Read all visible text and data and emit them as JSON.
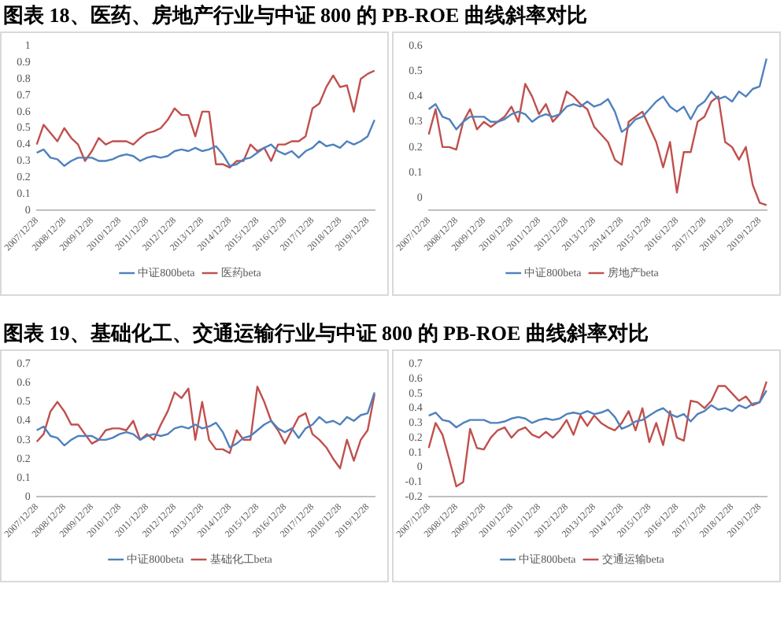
{
  "chart_data": [
    {
      "type": "line",
      "title": "图表 18、医药、房地产行业与中证 800 的 PB-ROE 曲线斜率对比",
      "categories": [
        "2007/12/28",
        null,
        null,
        null,
        "2008/12/28",
        null,
        null,
        null,
        "2009/12/28",
        null,
        null,
        null,
        "2010/12/28",
        null,
        null,
        null,
        "2011/12/28",
        null,
        null,
        null,
        "2012/12/28",
        null,
        null,
        null,
        "2013/12/28",
        null,
        null,
        null,
        "2014/12/28",
        null,
        null,
        null,
        "2015/12/28",
        null,
        null,
        null,
        "2016/12/28",
        null,
        null,
        null,
        "2017/12/28",
        null,
        null,
        null,
        "2018/12/28",
        null,
        null,
        null,
        "2019/12/28",
        null
      ],
      "ylim": [
        0,
        1
      ],
      "yticks": [
        0,
        0.1,
        0.2,
        0.3,
        0.4,
        0.5,
        0.6,
        0.7,
        0.8,
        0.9,
        1
      ],
      "legend": "bottom",
      "marker": "none",
      "series": [
        {
          "name": "中证800beta",
          "color": "#4f81bd",
          "values": [
            0.35,
            0.37,
            0.32,
            0.31,
            0.27,
            0.3,
            0.32,
            0.32,
            0.32,
            0.3,
            0.3,
            0.31,
            0.33,
            0.34,
            0.33,
            0.3,
            0.32,
            0.33,
            0.32,
            0.33,
            0.36,
            0.37,
            0.36,
            0.38,
            0.36,
            0.37,
            0.39,
            0.34,
            0.27,
            0.28,
            0.31,
            0.32,
            0.35,
            0.38,
            0.4,
            0.36,
            0.34,
            0.36,
            0.32,
            0.36,
            0.38,
            0.42,
            0.39,
            0.4,
            0.38,
            0.42,
            0.4,
            0.42,
            0.45,
            0.55
          ]
        },
        {
          "name": "医药beta",
          "color": "#c0504d",
          "values": [
            0.4,
            0.52,
            0.47,
            0.42,
            0.5,
            0.44,
            0.4,
            0.3,
            0.36,
            0.44,
            0.4,
            0.42,
            0.42,
            0.42,
            0.4,
            0.44,
            0.47,
            0.48,
            0.5,
            0.55,
            0.62,
            0.58,
            0.58,
            0.45,
            0.6,
            0.6,
            0.28,
            0.28,
            0.26,
            0.3,
            0.3,
            0.4,
            0.36,
            0.38,
            0.3,
            0.4,
            0.4,
            0.42,
            0.42,
            0.45,
            0.62,
            0.65,
            0.75,
            0.82,
            0.75,
            0.76,
            0.6,
            0.8,
            0.83,
            0.85
          ]
        }
      ]
    },
    {
      "type": "line",
      "categories": [
        "2007/12/28",
        null,
        null,
        null,
        "2008/12/28",
        null,
        null,
        null,
        "2009/12/28",
        null,
        null,
        null,
        "2010/12/28",
        null,
        null,
        null,
        "2011/12/28",
        null,
        null,
        null,
        "2012/12/28",
        null,
        null,
        null,
        "2013/12/28",
        null,
        null,
        null,
        "2014/12/28",
        null,
        null,
        null,
        "2015/12/28",
        null,
        null,
        null,
        "2016/12/28",
        null,
        null,
        null,
        "2017/12/28",
        null,
        null,
        null,
        "2018/12/28",
        null,
        null,
        null,
        "2019/12/28",
        null
      ],
      "ylim": [
        -0.05,
        0.6
      ],
      "yticks": [
        0,
        0.1,
        0.2,
        0.3,
        0.4,
        0.5,
        0.6
      ],
      "legend": "bottom",
      "marker": "none",
      "series": [
        {
          "name": "中证800beta",
          "color": "#4f81bd",
          "values": [
            0.35,
            0.37,
            0.32,
            0.31,
            0.27,
            0.3,
            0.32,
            0.32,
            0.32,
            0.3,
            0.3,
            0.31,
            0.33,
            0.34,
            0.33,
            0.3,
            0.32,
            0.33,
            0.32,
            0.33,
            0.36,
            0.37,
            0.36,
            0.38,
            0.36,
            0.37,
            0.39,
            0.34,
            0.26,
            0.28,
            0.31,
            0.32,
            0.35,
            0.38,
            0.4,
            0.36,
            0.34,
            0.36,
            0.31,
            0.36,
            0.38,
            0.42,
            0.39,
            0.4,
            0.38,
            0.42,
            0.4,
            0.43,
            0.44,
            0.55
          ]
        },
        {
          "name": "房地产beta",
          "color": "#c0504d",
          "values": [
            0.25,
            0.35,
            0.2,
            0.2,
            0.19,
            0.3,
            0.35,
            0.27,
            0.3,
            0.28,
            0.3,
            0.32,
            0.36,
            0.3,
            0.45,
            0.4,
            0.33,
            0.37,
            0.3,
            0.33,
            0.42,
            0.4,
            0.37,
            0.35,
            0.28,
            0.25,
            0.22,
            0.15,
            0.13,
            0.3,
            0.32,
            0.34,
            0.28,
            0.22,
            0.12,
            0.22,
            0.02,
            0.18,
            0.18,
            0.3,
            0.32,
            0.38,
            0.4,
            0.22,
            0.2,
            0.15,
            0.2,
            0.05,
            -0.02,
            -0.03
          ]
        }
      ]
    },
    {
      "type": "line",
      "title": "图表 19、基础化工、交通运输行业与中证 800 的 PB-ROE 曲线斜率对比",
      "categories": [
        "2007/12/28",
        null,
        null,
        null,
        "2008/12/28",
        null,
        null,
        null,
        "2009/12/28",
        null,
        null,
        null,
        "2010/12/28",
        null,
        null,
        null,
        "2011/12/28",
        null,
        null,
        null,
        "2012/12/28",
        null,
        null,
        null,
        "2013/12/28",
        null,
        null,
        null,
        "2014/12/28",
        null,
        null,
        null,
        "2015/12/28",
        null,
        null,
        null,
        "2016/12/28",
        null,
        null,
        null,
        "2017/12/28",
        null,
        null,
        null,
        "2018/12/28",
        null,
        null,
        null,
        "2019/12/28",
        null
      ],
      "ylim": [
        0,
        0.7
      ],
      "yticks": [
        0,
        0.1,
        0.2,
        0.3,
        0.4,
        0.5,
        0.6,
        0.7
      ],
      "legend": "bottom",
      "marker": "none",
      "series": [
        {
          "name": "中证800beta",
          "color": "#4f81bd",
          "values": [
            0.35,
            0.37,
            0.32,
            0.31,
            0.27,
            0.3,
            0.32,
            0.32,
            0.32,
            0.3,
            0.3,
            0.31,
            0.33,
            0.34,
            0.33,
            0.3,
            0.32,
            0.33,
            0.32,
            0.33,
            0.36,
            0.37,
            0.36,
            0.38,
            0.36,
            0.37,
            0.39,
            0.34,
            0.26,
            0.28,
            0.31,
            0.32,
            0.35,
            0.38,
            0.4,
            0.36,
            0.34,
            0.36,
            0.31,
            0.36,
            0.38,
            0.42,
            0.39,
            0.4,
            0.38,
            0.42,
            0.4,
            0.43,
            0.44,
            0.55
          ]
        },
        {
          "name": "基础化工beta",
          "color": "#c0504d",
          "values": [
            0.29,
            0.33,
            0.45,
            0.5,
            0.45,
            0.38,
            0.38,
            0.33,
            0.28,
            0.3,
            0.35,
            0.36,
            0.36,
            0.35,
            0.4,
            0.3,
            0.33,
            0.3,
            0.38,
            0.45,
            0.55,
            0.52,
            0.57,
            0.3,
            0.5,
            0.3,
            0.25,
            0.25,
            0.23,
            0.35,
            0.3,
            0.3,
            0.58,
            0.5,
            0.4,
            0.35,
            0.28,
            0.35,
            0.42,
            0.44,
            0.33,
            0.3,
            0.26,
            0.2,
            0.15,
            0.3,
            0.19,
            0.3,
            0.35,
            0.54
          ]
        }
      ]
    },
    {
      "type": "line",
      "categories": [
        "2007/12/28",
        null,
        null,
        null,
        "2008/12/28",
        null,
        null,
        null,
        "2009/12/28",
        null,
        null,
        null,
        "2010/12/28",
        null,
        null,
        null,
        "2011/12/28",
        null,
        null,
        null,
        "2012/12/28",
        null,
        null,
        null,
        "2013/12/28",
        null,
        null,
        null,
        "2014/12/28",
        null,
        null,
        null,
        "2015/12/28",
        null,
        null,
        null,
        "2016/12/28",
        null,
        null,
        null,
        "2017/12/28",
        null,
        null,
        null,
        "2018/12/28",
        null,
        null,
        null,
        "2019/12/28",
        null
      ],
      "ylim": [
        -0.2,
        0.7
      ],
      "yticks": [
        -0.2,
        -0.1,
        0,
        0.1,
        0.2,
        0.3,
        0.4,
        0.5,
        0.6,
        0.7
      ],
      "legend": "bottom",
      "marker": "none",
      "series": [
        {
          "name": "中证800beta",
          "color": "#4f81bd",
          "values": [
            0.35,
            0.37,
            0.32,
            0.31,
            0.27,
            0.3,
            0.32,
            0.32,
            0.32,
            0.3,
            0.3,
            0.31,
            0.33,
            0.34,
            0.33,
            0.3,
            0.32,
            0.33,
            0.32,
            0.33,
            0.36,
            0.37,
            0.36,
            0.38,
            0.36,
            0.37,
            0.39,
            0.34,
            0.26,
            0.28,
            0.31,
            0.32,
            0.35,
            0.38,
            0.4,
            0.36,
            0.34,
            0.36,
            0.31,
            0.36,
            0.38,
            0.42,
            0.39,
            0.4,
            0.38,
            0.42,
            0.4,
            0.43,
            0.44,
            0.52
          ]
        },
        {
          "name": "交通运输beta",
          "color": "#c0504d",
          "values": [
            0.13,
            0.3,
            0.22,
            0.05,
            -0.13,
            -0.1,
            0.26,
            0.13,
            0.12,
            0.2,
            0.25,
            0.27,
            0.2,
            0.25,
            0.27,
            0.22,
            0.2,
            0.24,
            0.2,
            0.25,
            0.32,
            0.22,
            0.35,
            0.28,
            0.35,
            0.3,
            0.27,
            0.25,
            0.3,
            0.38,
            0.25,
            0.4,
            0.17,
            0.3,
            0.15,
            0.38,
            0.2,
            0.18,
            0.45,
            0.44,
            0.4,
            0.45,
            0.55,
            0.55,
            0.5,
            0.45,
            0.48,
            0.42,
            0.44,
            0.58
          ]
        }
      ]
    }
  ]
}
